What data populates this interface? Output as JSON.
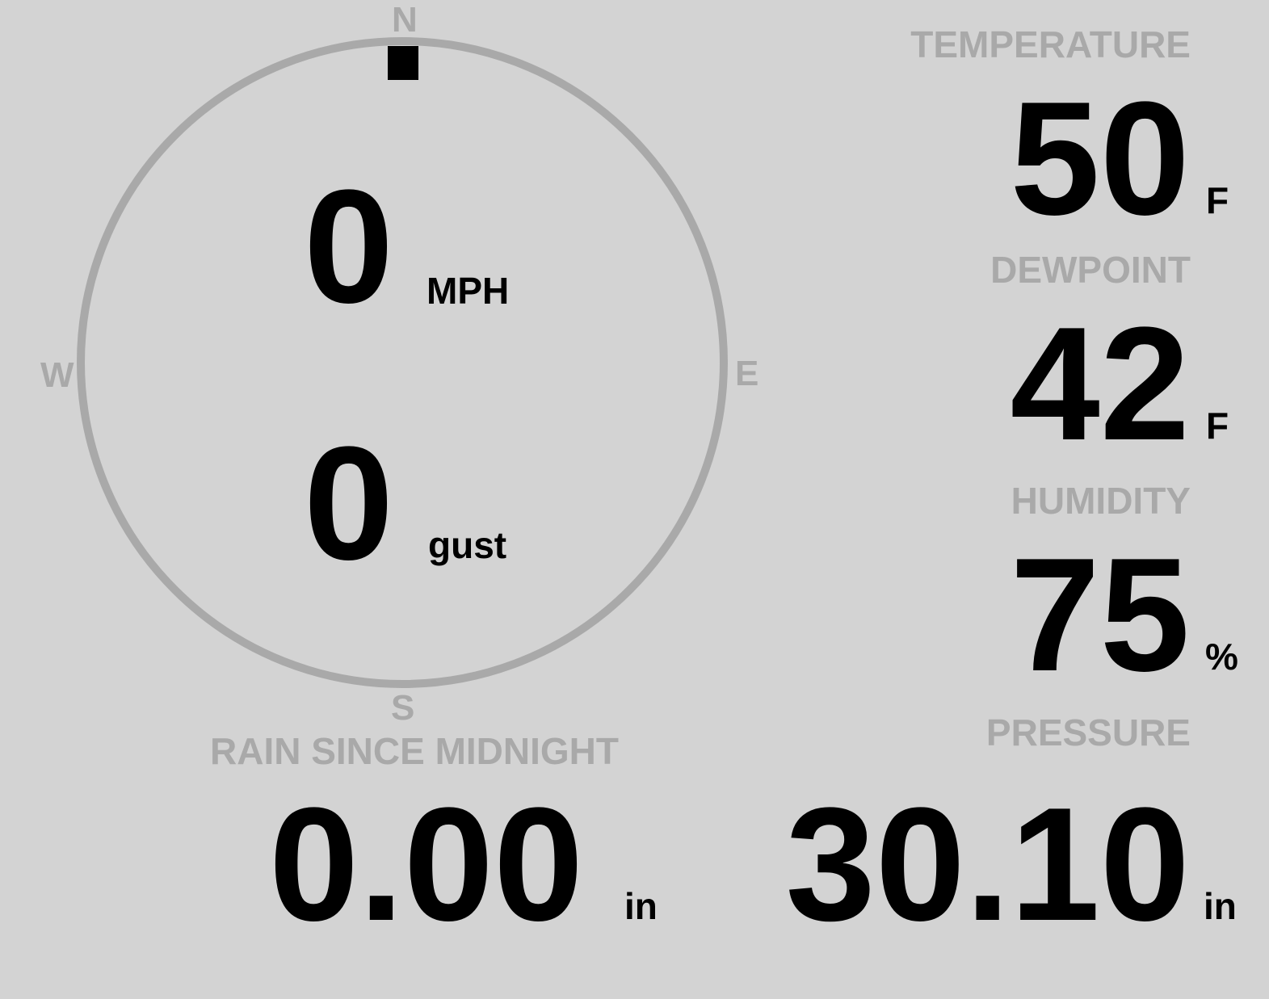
{
  "colors": {
    "background": "#d3d3d3",
    "label": "#a9a9a9",
    "value": "#000000"
  },
  "wind": {
    "cardinals": {
      "n": "N",
      "e": "E",
      "s": "S",
      "w": "W"
    },
    "direction_deg": 0,
    "speed": "0",
    "speed_unit": "MPH",
    "gust": "0",
    "gust_unit": "gust"
  },
  "temperature": {
    "label": "TEMPERATURE",
    "value": "50",
    "unit": "F"
  },
  "dewpoint": {
    "label": "DEWPOINT",
    "value": "42",
    "unit": "F"
  },
  "humidity": {
    "label": "HUMIDITY",
    "value": "75",
    "unit": "%"
  },
  "rain": {
    "label": "RAIN SINCE MIDNIGHT",
    "value": "0.00",
    "unit": "in"
  },
  "pressure": {
    "label": "PRESSURE",
    "value": "30.10",
    "unit": "in"
  }
}
